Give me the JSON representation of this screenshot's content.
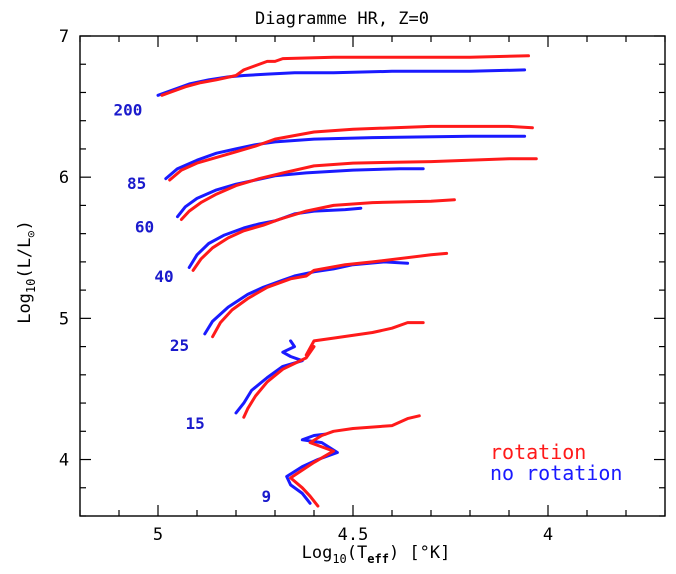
{
  "chart_data": {
    "type": "line",
    "title": "Diagramme HR, Z=0",
    "xlabel": {
      "pre": "Log",
      "sub1": "10",
      "mid": "(T",
      "sub2": "eff",
      "post": ") [°K]"
    },
    "ylabel": {
      "pre": "Log",
      "sub1": "10",
      "mid": "(L/L",
      "sub2": "⊙",
      "post": ")"
    },
    "xlim": [
      5.2,
      3.7
    ],
    "ylim": [
      3.6,
      7.0
    ],
    "x_reversed": true,
    "xticks": [
      5.0,
      4.5,
      4.0
    ],
    "xtick_labels": [
      "5",
      "4.5",
      "4"
    ],
    "yticks": [
      4,
      5,
      6,
      7
    ],
    "ytick_labels": [
      "4",
      "5",
      "6",
      "7"
    ],
    "grid": false,
    "legend_position": "bottom-right",
    "colors": {
      "rotation": "#ff1a1a",
      "no_rotation": "#1a1aff",
      "mass_label": "#1a1acc"
    },
    "legend": [
      {
        "key": "rotation",
        "label": "rotation"
      },
      {
        "key": "no_rotation",
        "label": "no rotation"
      }
    ],
    "mass_labels": [
      {
        "text": "200",
        "x": 5.04,
        "y": 6.48
      },
      {
        "text": "85",
        "x": 5.03,
        "y": 5.96
      },
      {
        "text": "60",
        "x": 5.01,
        "y": 5.65
      },
      {
        "text": "40",
        "x": 4.96,
        "y": 5.3
      },
      {
        "text": "25",
        "x": 4.92,
        "y": 4.81
      },
      {
        "text": "15",
        "x": 4.88,
        "y": 4.26
      },
      {
        "text": "9",
        "x": 4.71,
        "y": 3.74
      }
    ],
    "tracks": [
      {
        "mass": "200",
        "rotation": [
          [
            4.99,
            6.58
          ],
          [
            4.97,
            6.6
          ],
          [
            4.93,
            6.64
          ],
          [
            4.89,
            6.67
          ],
          [
            4.85,
            6.69
          ],
          [
            4.8,
            6.72
          ],
          [
            4.78,
            6.76
          ],
          [
            4.75,
            6.79
          ],
          [
            4.72,
            6.82
          ],
          [
            4.7,
            6.82
          ],
          [
            4.68,
            6.84
          ],
          [
            4.55,
            6.85
          ],
          [
            4.4,
            6.85
          ],
          [
            4.2,
            6.85
          ],
          [
            4.05,
            6.86
          ]
        ],
        "no_rotation": [
          [
            5.0,
            6.58
          ],
          [
            4.96,
            6.62
          ],
          [
            4.92,
            6.66
          ],
          [
            4.87,
            6.69
          ],
          [
            4.82,
            6.71
          ],
          [
            4.78,
            6.72
          ],
          [
            4.72,
            6.73
          ],
          [
            4.65,
            6.74
          ],
          [
            4.55,
            6.74
          ],
          [
            4.4,
            6.75
          ],
          [
            4.2,
            6.75
          ],
          [
            4.06,
            6.76
          ]
        ]
      },
      {
        "mass": "85",
        "rotation": [
          [
            4.97,
            5.98
          ],
          [
            4.94,
            6.05
          ],
          [
            4.9,
            6.1
          ],
          [
            4.85,
            6.14
          ],
          [
            4.8,
            6.18
          ],
          [
            4.75,
            6.22
          ],
          [
            4.7,
            6.27
          ],
          [
            4.6,
            6.32
          ],
          [
            4.5,
            6.34
          ],
          [
            4.3,
            6.36
          ],
          [
            4.1,
            6.36
          ],
          [
            4.04,
            6.35
          ]
        ],
        "no_rotation": [
          [
            4.98,
            5.99
          ],
          [
            4.95,
            6.06
          ],
          [
            4.9,
            6.12
          ],
          [
            4.85,
            6.17
          ],
          [
            4.8,
            6.2
          ],
          [
            4.75,
            6.23
          ],
          [
            4.7,
            6.25
          ],
          [
            4.6,
            6.27
          ],
          [
            4.45,
            6.28
          ],
          [
            4.2,
            6.29
          ],
          [
            4.06,
            6.29
          ]
        ]
      },
      {
        "mass": "60",
        "rotation": [
          [
            4.94,
            5.7
          ],
          [
            4.92,
            5.76
          ],
          [
            4.89,
            5.82
          ],
          [
            4.85,
            5.88
          ],
          [
            4.8,
            5.94
          ],
          [
            4.74,
            5.99
          ],
          [
            4.68,
            6.03
          ],
          [
            4.6,
            6.08
          ],
          [
            4.5,
            6.1
          ],
          [
            4.3,
            6.11
          ],
          [
            4.1,
            6.13
          ],
          [
            4.03,
            6.13
          ]
        ],
        "no_rotation": [
          [
            4.95,
            5.72
          ],
          [
            4.93,
            5.79
          ],
          [
            4.9,
            5.85
          ],
          [
            4.85,
            5.91
          ],
          [
            4.8,
            5.95
          ],
          [
            4.75,
            5.98
          ],
          [
            4.7,
            6.01
          ],
          [
            4.62,
            6.03
          ],
          [
            4.5,
            6.05
          ],
          [
            4.38,
            6.06
          ],
          [
            4.32,
            6.06
          ]
        ]
      },
      {
        "mass": "40",
        "rotation": [
          [
            4.91,
            5.34
          ],
          [
            4.89,
            5.42
          ],
          [
            4.86,
            5.5
          ],
          [
            4.82,
            5.57
          ],
          [
            4.78,
            5.62
          ],
          [
            4.73,
            5.66
          ],
          [
            4.69,
            5.7
          ],
          [
            4.62,
            5.76
          ],
          [
            4.55,
            5.8
          ],
          [
            4.45,
            5.82
          ],
          [
            4.3,
            5.83
          ],
          [
            4.24,
            5.84
          ]
        ],
        "no_rotation": [
          [
            4.92,
            5.36
          ],
          [
            4.9,
            5.45
          ],
          [
            4.87,
            5.53
          ],
          [
            4.83,
            5.59
          ],
          [
            4.78,
            5.64
          ],
          [
            4.74,
            5.67
          ],
          [
            4.7,
            5.69
          ],
          [
            4.68,
            5.71
          ],
          [
            4.65,
            5.74
          ],
          [
            4.6,
            5.76
          ],
          [
            4.52,
            5.77
          ],
          [
            4.48,
            5.78
          ]
        ]
      },
      {
        "mass": "25",
        "rotation": [
          [
            4.86,
            4.87
          ],
          [
            4.84,
            4.97
          ],
          [
            4.81,
            5.06
          ],
          [
            4.77,
            5.14
          ],
          [
            4.72,
            5.22
          ],
          [
            4.66,
            5.28
          ],
          [
            4.62,
            5.3
          ],
          [
            4.6,
            5.34
          ],
          [
            4.52,
            5.38
          ],
          [
            4.45,
            5.4
          ],
          [
            4.3,
            5.45
          ],
          [
            4.26,
            5.46
          ]
        ],
        "no_rotation": [
          [
            4.88,
            4.89
          ],
          [
            4.86,
            4.98
          ],
          [
            4.82,
            5.08
          ],
          [
            4.77,
            5.17
          ],
          [
            4.73,
            5.22
          ],
          [
            4.68,
            5.27
          ],
          [
            4.65,
            5.3
          ],
          [
            4.6,
            5.33
          ],
          [
            4.55,
            5.35
          ],
          [
            4.5,
            5.38
          ],
          [
            4.42,
            5.4
          ],
          [
            4.36,
            5.39
          ]
        ]
      },
      {
        "mass": "15",
        "rotation": [
          [
            4.78,
            4.3
          ],
          [
            4.77,
            4.36
          ],
          [
            4.75,
            4.45
          ],
          [
            4.72,
            4.55
          ],
          [
            4.68,
            4.64
          ],
          [
            4.62,
            4.72
          ],
          [
            4.6,
            4.8
          ],
          [
            4.62,
            4.74
          ],
          [
            4.6,
            4.84
          ],
          [
            4.55,
            4.86
          ],
          [
            4.45,
            4.9
          ],
          [
            4.4,
            4.93
          ],
          [
            4.36,
            4.97
          ],
          [
            4.32,
            4.97
          ]
        ],
        "no_rotation": [
          [
            4.8,
            4.33
          ],
          [
            4.78,
            4.4
          ],
          [
            4.76,
            4.49
          ],
          [
            4.72,
            4.58
          ],
          [
            4.68,
            4.66
          ],
          [
            4.63,
            4.7
          ],
          [
            4.66,
            4.73
          ],
          [
            4.68,
            4.76
          ],
          [
            4.65,
            4.8
          ],
          [
            4.66,
            4.84
          ]
        ]
      },
      {
        "mass": "9",
        "rotation": [
          [
            4.59,
            3.67
          ],
          [
            4.61,
            3.74
          ],
          [
            4.63,
            3.8
          ],
          [
            4.66,
            3.87
          ],
          [
            4.6,
            3.98
          ],
          [
            4.55,
            4.06
          ],
          [
            4.61,
            4.12
          ],
          [
            4.58,
            4.17
          ],
          [
            4.55,
            4.2
          ],
          [
            4.5,
            4.22
          ],
          [
            4.4,
            4.24
          ],
          [
            4.36,
            4.29
          ],
          [
            4.33,
            4.31
          ]
        ],
        "no_rotation": [
          [
            4.61,
            3.69
          ],
          [
            4.63,
            3.76
          ],
          [
            4.66,
            3.82
          ],
          [
            4.67,
            3.88
          ],
          [
            4.63,
            3.95
          ],
          [
            4.59,
            4.0
          ],
          [
            4.54,
            4.05
          ],
          [
            4.58,
            4.12
          ],
          [
            4.63,
            4.14
          ],
          [
            4.6,
            4.17
          ],
          [
            4.57,
            4.18
          ]
        ]
      }
    ]
  }
}
